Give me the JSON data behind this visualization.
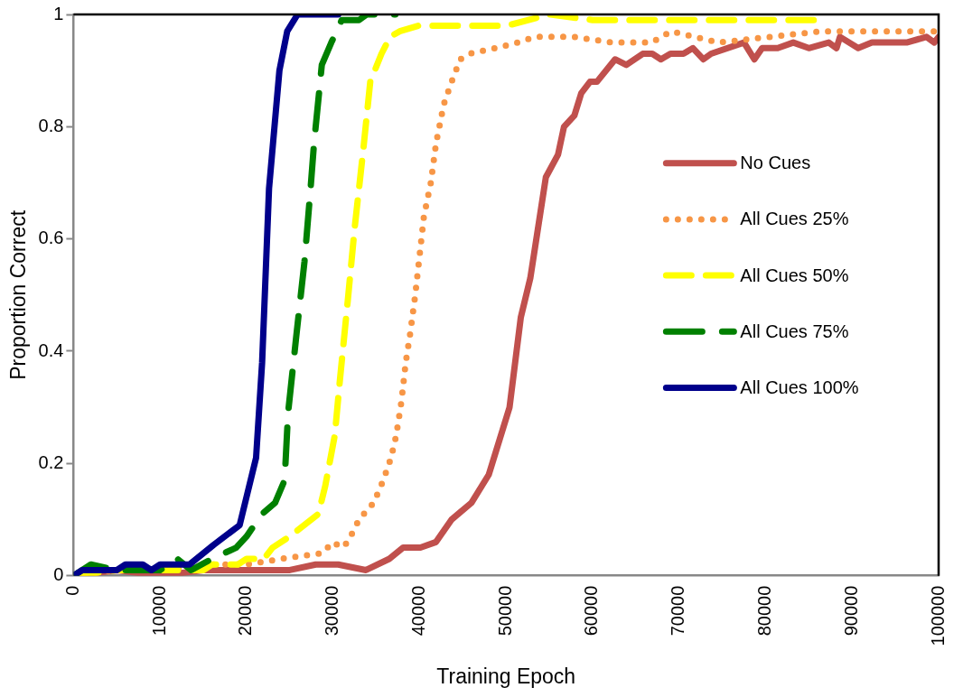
{
  "chart_data": {
    "type": "line",
    "xlabel": "Training Epoch",
    "ylabel": "Proportion Correct",
    "xlim": [
      0,
      100000
    ],
    "xticks": [
      0,
      10000,
      20000,
      30000,
      40000,
      50000,
      60000,
      70000,
      80000,
      90000,
      100000
    ],
    "ylim": [
      0,
      1
    ],
    "yticks": [
      0,
      0.2,
      0.4,
      0.6,
      0.8,
      1
    ],
    "grid": false,
    "legend": "right",
    "marker": "none",
    "series": [
      {
        "name": "No Cues",
        "color": "#c0504d",
        "line_style": "solid",
        "x": [
          0,
          5000,
          10000,
          15000,
          20000,
          25000,
          28000,
          30600,
          33800,
          36500,
          38100,
          40100,
          41900,
          43700,
          46000,
          48000,
          50400,
          51700,
          52800,
          54600,
          56000,
          56700,
          57900,
          58700,
          59700,
          60500,
          62600,
          63900,
          65800,
          66900,
          67900,
          69000,
          70500,
          71600,
          72800,
          73700,
          77500,
          78700,
          79600,
          81400,
          83200,
          85000,
          87300,
          88200,
          88600,
          90700,
          92300,
          96300,
          98600,
          99500,
          100000
        ],
        "values": [
          0,
          0.01,
          0,
          0.01,
          0.01,
          0.01,
          0.02,
          0.02,
          0.01,
          0.03,
          0.05,
          0.05,
          0.06,
          0.1,
          0.13,
          0.18,
          0.3,
          0.46,
          0.53,
          0.71,
          0.75,
          0.8,
          0.82,
          0.86,
          0.88,
          0.88,
          0.92,
          0.91,
          0.93,
          0.93,
          0.92,
          0.93,
          0.93,
          0.94,
          0.92,
          0.93,
          0.95,
          0.92,
          0.94,
          0.94,
          0.95,
          0.94,
          0.95,
          0.94,
          0.96,
          0.94,
          0.95,
          0.95,
          0.96,
          0.95,
          0.96
        ]
      },
      {
        "name": "All Cues 25%",
        "color": "#f79646",
        "line_style": "dotted",
        "x": [
          0,
          5000,
          10000,
          15000,
          20000,
          24000,
          28700,
          30000,
          31000,
          31700,
          33000,
          34700,
          35800,
          36700,
          37300,
          37900,
          38400,
          38900,
          39500,
          40000,
          40500,
          41300,
          41900,
          42800,
          43700,
          44700,
          45800,
          48800,
          51400,
          53300,
          57800,
          62300,
          66800,
          69100,
          74600,
          80500,
          86400,
          89500,
          94100,
          99500,
          100000
        ],
        "values": [
          0,
          0.01,
          0.01,
          0.02,
          0.02,
          0.03,
          0.04,
          0.06,
          0.05,
          0.06,
          0.1,
          0.13,
          0.17,
          0.21,
          0.25,
          0.31,
          0.38,
          0.43,
          0.5,
          0.57,
          0.64,
          0.7,
          0.77,
          0.84,
          0.88,
          0.92,
          0.93,
          0.94,
          0.95,
          0.96,
          0.96,
          0.95,
          0.95,
          0.97,
          0.95,
          0.96,
          0.97,
          0.97,
          0.97,
          0.97,
          0.96
        ]
      },
      {
        "name": "All Cues 50%",
        "color": "#ffff00",
        "line_style": "dashed",
        "x": [
          0,
          5000,
          10000,
          15000,
          16000,
          19000,
          20000,
          22000,
          23000,
          25000,
          28300,
          29100,
          30200,
          30800,
          31700,
          32500,
          33500,
          34300,
          35600,
          36600,
          37700,
          39900,
          50100,
          55000,
          60000,
          65000,
          70000,
          75000,
          80000,
          86000
        ],
        "values": [
          0,
          0.01,
          0.01,
          0.01,
          0.02,
          0.02,
          0.03,
          0.03,
          0.05,
          0.07,
          0.11,
          0.16,
          0.25,
          0.35,
          0.49,
          0.62,
          0.76,
          0.88,
          0.93,
          0.96,
          0.97,
          0.98,
          0.98,
          1,
          0.99,
          0.99,
          0.99,
          0.99,
          0.99,
          0.99
        ]
      },
      {
        "name": "All Cues 75%",
        "color": "#008000",
        "line_style": "dashed",
        "x": [
          0,
          2000,
          5000,
          10000,
          12000,
          13600,
          16000,
          18800,
          20000,
          21800,
          23300,
          24400,
          24800,
          25700,
          26700,
          27400,
          27800,
          28700,
          29800,
          31000,
          33000,
          33900,
          37200
        ],
        "values": [
          0,
          0.02,
          0.01,
          0.01,
          0.03,
          0.01,
          0.03,
          0.05,
          0.07,
          0.11,
          0.13,
          0.17,
          0.29,
          0.42,
          0.56,
          0.69,
          0.77,
          0.91,
          0.95,
          0.99,
          0.99,
          1,
          1
        ]
      },
      {
        "name": "All Cues 100%",
        "color": "#00008b",
        "line_style": "solid",
        "x": [
          0,
          1000,
          5000,
          6000,
          8000,
          9000,
          10000,
          13400,
          16200,
          19200,
          21100,
          21800,
          22600,
          23800,
          24700,
          25900,
          30600
        ],
        "values": [
          0,
          0.01,
          0.01,
          0.02,
          0.02,
          0.01,
          0.02,
          0.02,
          0.055,
          0.09,
          0.21,
          0.38,
          0.69,
          0.9,
          0.97,
          1,
          1
        ]
      }
    ]
  }
}
